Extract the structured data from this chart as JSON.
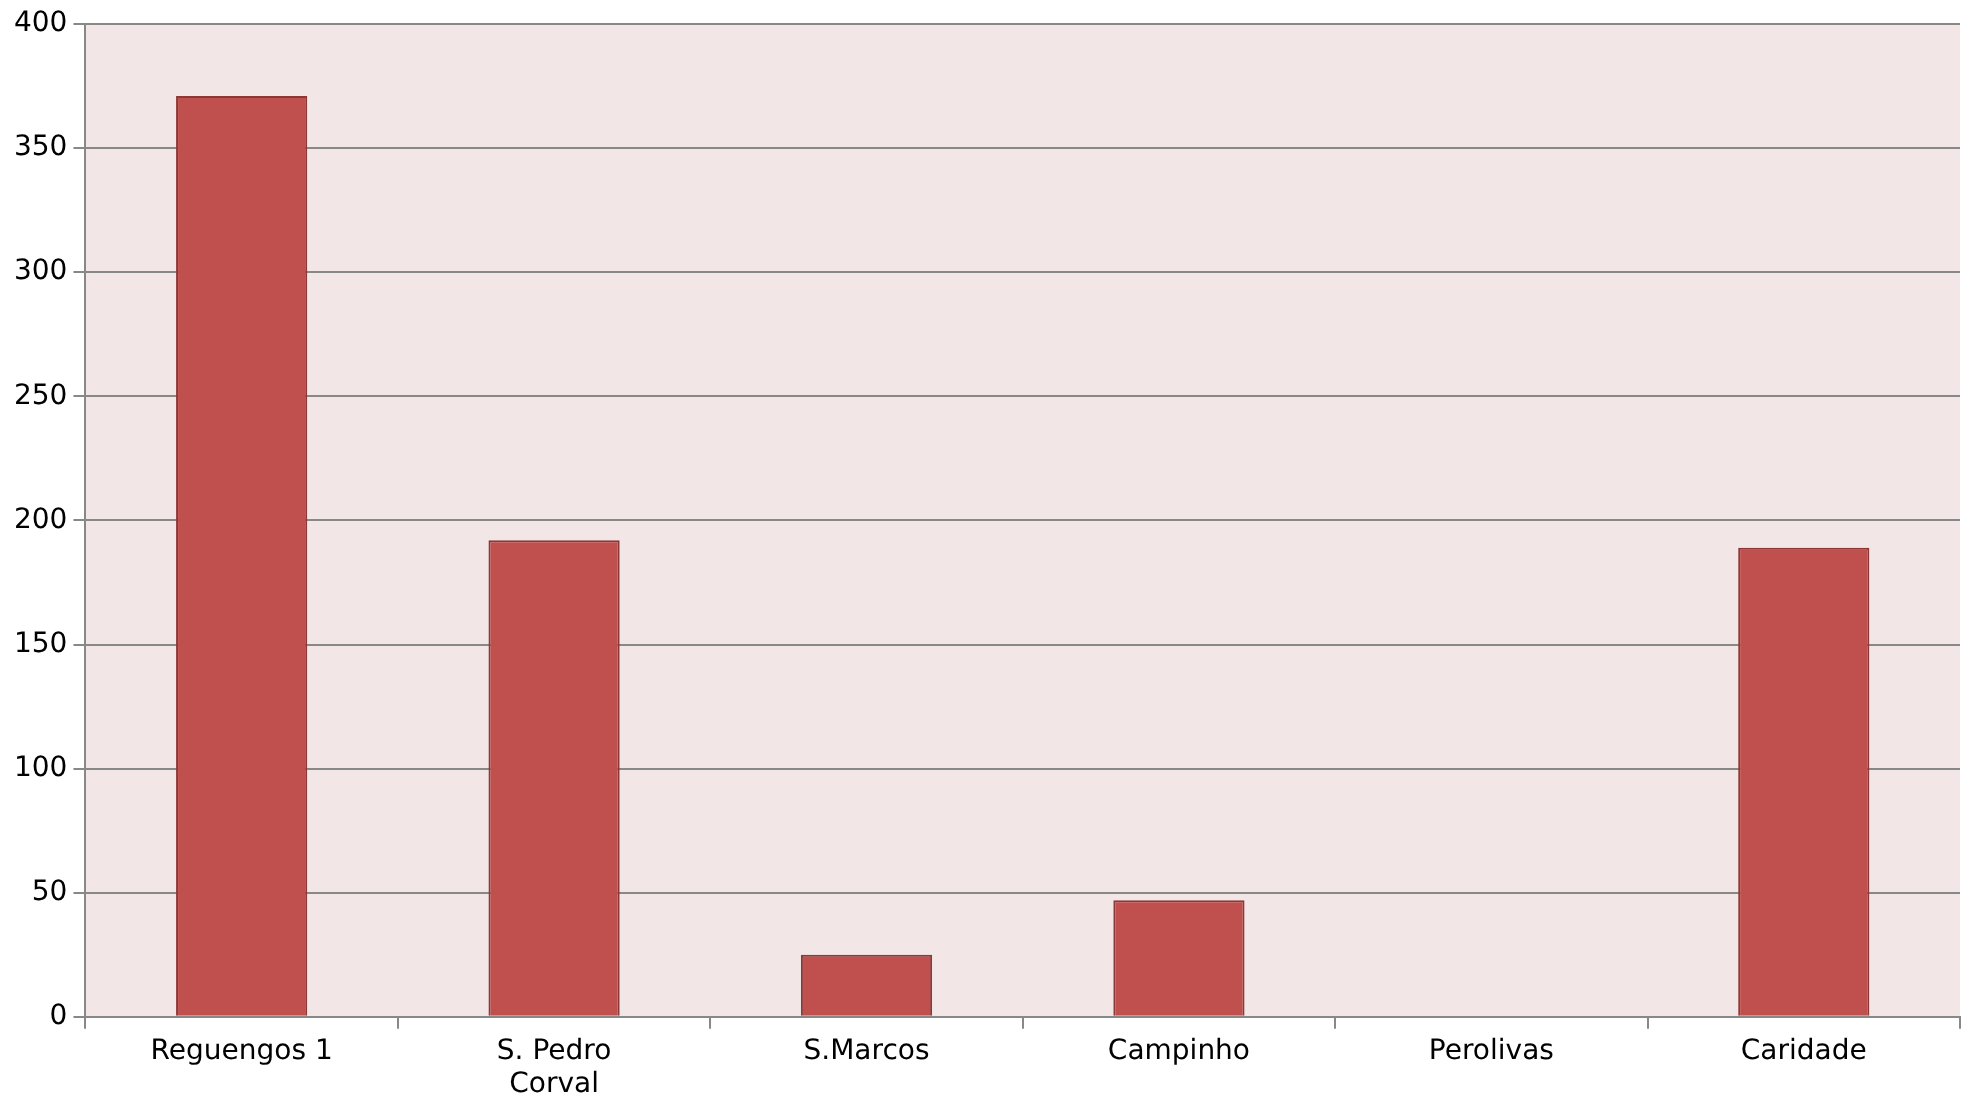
{
  "chart_data": {
    "type": "bar",
    "categories": [
      "Reguengos 1",
      "S. Pedro Corval",
      "S.Marcos",
      "Campinho",
      "Perolivas",
      "Caridade"
    ],
    "values": [
      371,
      192,
      25,
      47,
      0,
      189
    ],
    "color": "#c0504d",
    "ylim": [
      0,
      400
    ],
    "yticks": [
      0,
      50,
      100,
      150,
      200,
      250,
      300,
      350,
      400
    ],
    "grid": "y",
    "legend": false
  }
}
